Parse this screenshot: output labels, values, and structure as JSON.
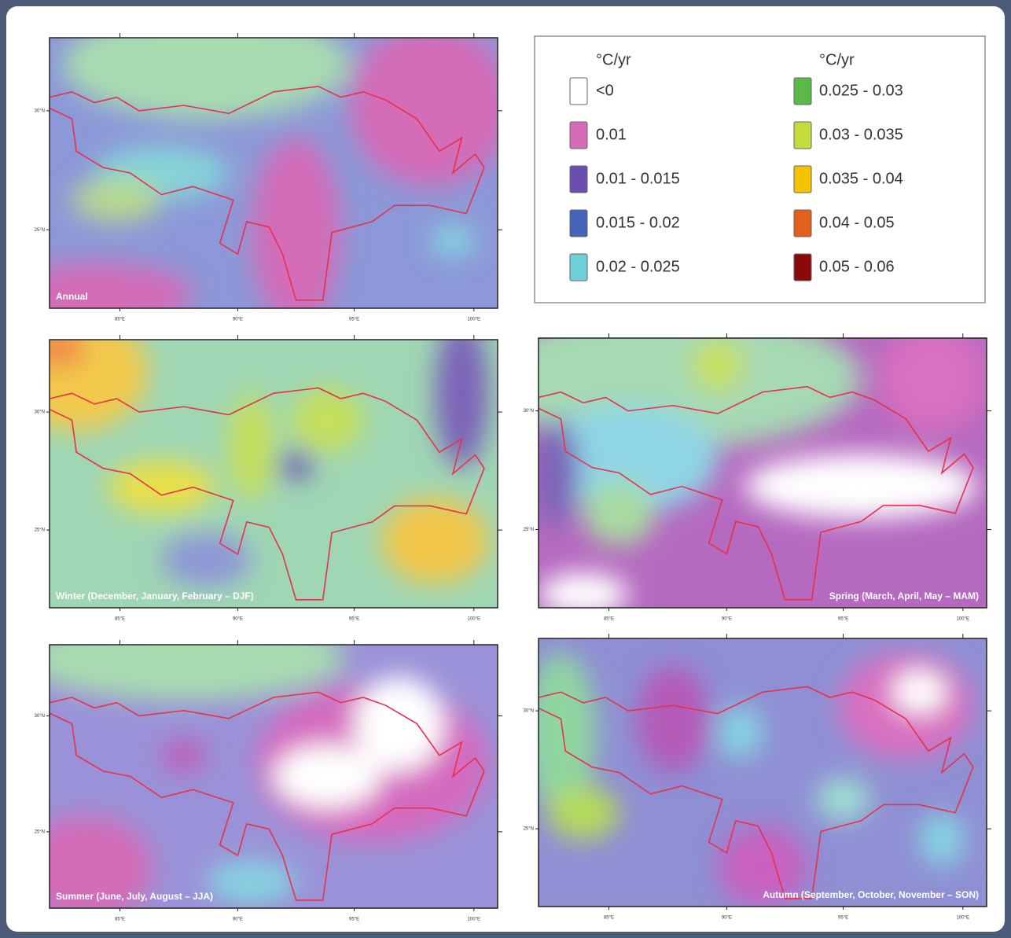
{
  "legend": {
    "columns": [
      {
        "unit": "°C/yr",
        "items": [
          {
            "label": "<0",
            "color": "#ffffff"
          },
          {
            "label": "0.01",
            "color": "#d46cb8"
          },
          {
            "label": "0.01 - 0.015",
            "color": "#6a4fae"
          },
          {
            "label": "0.015 - 0.02",
            "color": "#4563b8"
          },
          {
            "label": "0.02 - 0.025",
            "color": "#6fd0d8"
          }
        ]
      },
      {
        "unit": "°C/yr",
        "items": [
          {
            "label": "0.025 - 0.03",
            "color": "#5cb84a"
          },
          {
            "label": "0.03 - 0.035",
            "color": "#c6dc3c"
          },
          {
            "label": "0.035 - 0.04",
            "color": "#f5c400"
          },
          {
            "label": "0.04 - 0.05",
            "color": "#e0601c"
          },
          {
            "label": "0.05 - 0.06",
            "color": "#8a0a0a"
          }
        ]
      }
    ]
  },
  "x_ticks": [
    "85°E",
    "90°E",
    "95°E",
    "100°E"
  ],
  "y_ticks": [
    "30°N",
    "25°N"
  ],
  "panels": [
    {
      "label": "Annual"
    },
    {
      "label": "Winter (December, January, February – DJF)"
    },
    {
      "label": "Spring (March, April, May – MAM)"
    },
    {
      "label": "Summer (June, July, August – JJA)"
    },
    {
      "label": "Autumn (September, October, November – SON)"
    }
  ]
}
